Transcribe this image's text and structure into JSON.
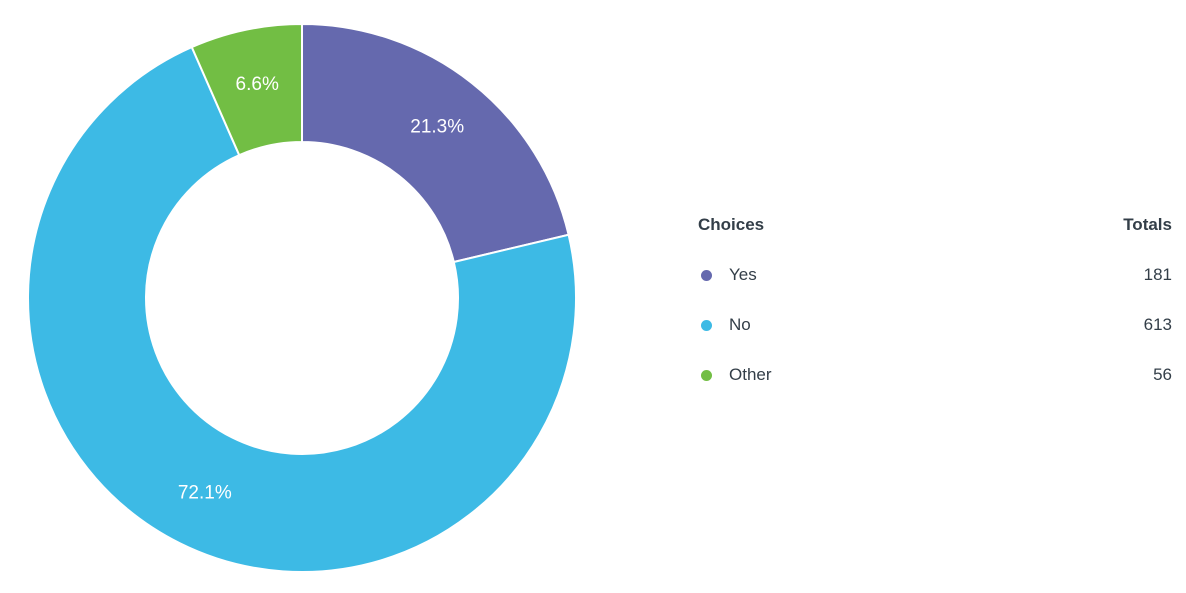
{
  "chart_data": {
    "type": "pie",
    "subtype": "donut",
    "categories": [
      "Yes",
      "No",
      "Other"
    ],
    "values": [
      181,
      613,
      56
    ],
    "percent_labels": [
      "21.3%",
      "72.1%",
      "6.6%"
    ],
    "colors": [
      "#6569AE",
      "#3DBAE5",
      "#72BE44"
    ],
    "start_angle_deg": 0,
    "direction": "clockwise",
    "legend_position": "right",
    "slice_label_color": "#FFFFFF",
    "separator_color": "#FFFFFF"
  },
  "legend": {
    "header": {
      "choices": "Choices",
      "totals": "Totals"
    },
    "rows": [
      {
        "label": "Yes",
        "total": "181",
        "color": "#6569AE"
      },
      {
        "label": "No",
        "total": "613",
        "color": "#3DBAE5"
      },
      {
        "label": "Other",
        "total": "56",
        "color": "#72BE44"
      }
    ]
  },
  "colors": {
    "text": "#333E48",
    "background": "#FFFFFF"
  }
}
